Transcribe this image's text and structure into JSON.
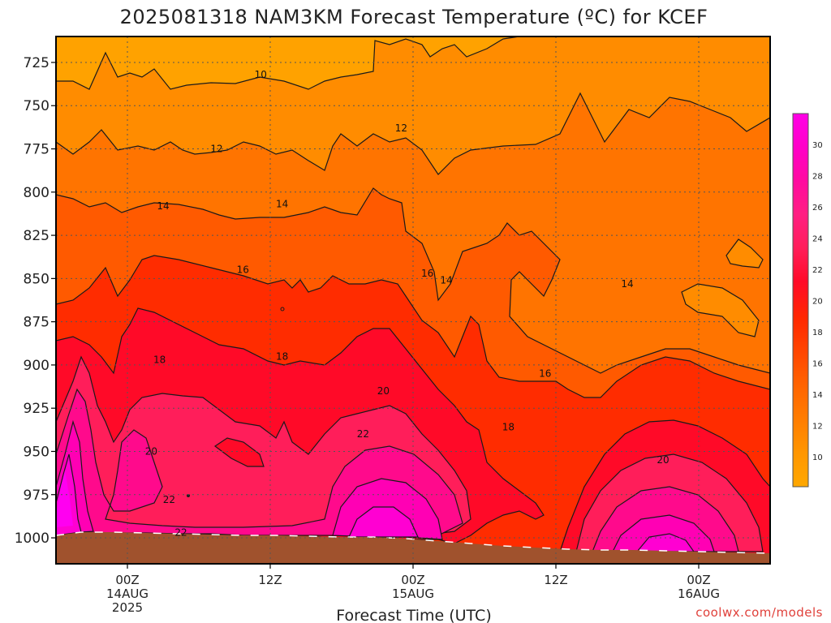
{
  "chart_data": {
    "type": "heatmap",
    "title": "2025081318 NAM3KM Forecast Temperature (ºC) for KCEF",
    "xlabel": "Forecast Time (UTC)",
    "credit": "coolwx.com/models",
    "y_axis": {
      "quantity": "pressure (hPa)",
      "range": [
        710,
        1015
      ],
      "inverted": true,
      "ticks": [
        "725",
        "750",
        "775",
        "800",
        "825",
        "850",
        "875",
        "900",
        "925",
        "950",
        "975",
        "1000"
      ],
      "grid": "dotted"
    },
    "x_axis": {
      "range_hours": [
        -6,
        54
      ],
      "ticks": [
        {
          "hour": 0,
          "line1": "00Z",
          "line2": "14AUG",
          "line3": "2025"
        },
        {
          "hour": 12,
          "line1": "12Z",
          "line2": "",
          "line3": ""
        },
        {
          "hour": 24,
          "line1": "00Z",
          "line2": "15AUG",
          "line3": ""
        },
        {
          "hour": 36,
          "line1": "12Z",
          "line2": "",
          "line3": ""
        },
        {
          "hour": 48,
          "line1": "00Z",
          "line2": "16AUG",
          "line3": ""
        }
      ],
      "grid": "dotted"
    },
    "colorbar": {
      "labels": [
        "30",
        "28",
        "26",
        "24",
        "22",
        "20",
        "18",
        "16",
        "14",
        "12",
        "10"
      ],
      "colors_top_to_bottom": [
        "#ff00e6",
        "#ff00c8",
        "#ff0aa0",
        "#ff1e82",
        "#ff1e5a",
        "#ff0a28",
        "#ff2800",
        "#ff4600",
        "#ff6400",
        "#ff7d00",
        "#ff9600",
        "#ffa800"
      ]
    },
    "contour_labels": [
      {
        "text": "10",
        "hour": 11.2,
        "p": 732
      },
      {
        "text": "12",
        "hour": 7.5,
        "p": 775
      },
      {
        "text": "12",
        "hour": 23.0,
        "p": 763
      },
      {
        "text": "14",
        "hour": 3.0,
        "p": 808
      },
      {
        "text": "14",
        "hour": 13.0,
        "p": 807
      },
      {
        "text": "14",
        "hour": 26.8,
        "p": 851
      },
      {
        "text": "14",
        "hour": 42.0,
        "p": 853
      },
      {
        "text": "16",
        "hour": 9.7,
        "p": 845
      },
      {
        "text": "16",
        "hour": 25.2,
        "p": 847
      },
      {
        "text": "16",
        "hour": 35.1,
        "p": 905
      },
      {
        "text": "18",
        "hour": 2.7,
        "p": 897
      },
      {
        "text": "18",
        "hour": 13.0,
        "p": 895
      },
      {
        "text": "18",
        "hour": 32.0,
        "p": 936
      },
      {
        "text": "20",
        "hour": 2.0,
        "p": 950
      },
      {
        "text": "20",
        "hour": 21.5,
        "p": 915
      },
      {
        "text": "20",
        "hour": 45.0,
        "p": 955
      },
      {
        "text": "22",
        "hour": 3.5,
        "p": 978
      },
      {
        "text": "22",
        "hour": 4.5,
        "p": 997
      },
      {
        "text": "22",
        "hour": 19.8,
        "p": 940
      }
    ],
    "colors": {
      "ground": "#a0522d",
      "contour": "#1a1a1a"
    }
  }
}
